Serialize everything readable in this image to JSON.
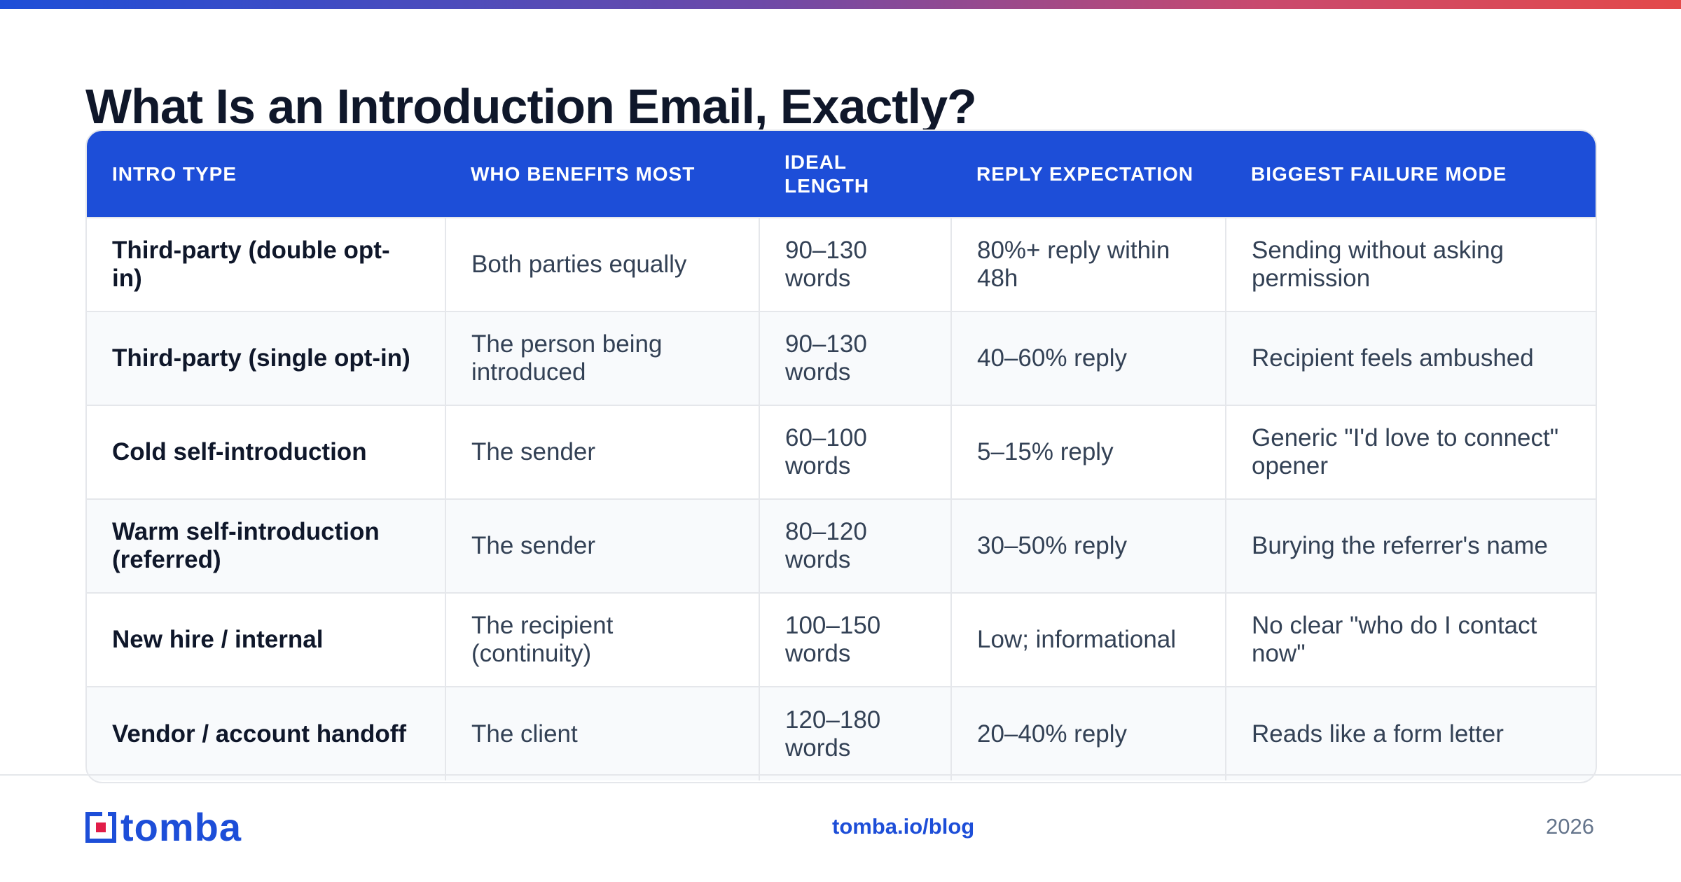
{
  "title": "What Is an Introduction Email, Exactly?",
  "table": {
    "headers": [
      "INTRO TYPE",
      "WHO BENEFITS MOST",
      "IDEAL LENGTH",
      "REPLY EXPECTATION",
      "BIGGEST FAILURE MODE"
    ],
    "rows": [
      [
        "Third-party (double opt-in)",
        "Both parties equally",
        "90–130 words",
        "80%+ reply within 48h",
        "Sending without asking permission"
      ],
      [
        "Third-party (single opt-in)",
        "The person being introduced",
        "90–130 words",
        "40–60% reply",
        "Recipient feels ambushed"
      ],
      [
        "Cold self-introduction",
        "The sender",
        "60–100 words",
        "5–15% reply",
        "Generic \"I'd love to connect\" opener"
      ],
      [
        "Warm self-introduction (referred)",
        "The sender",
        "80–120 words",
        "30–50% reply",
        "Burying the referrer's name"
      ],
      [
        "New hire / internal",
        "The recipient (continuity)",
        "100–150 words",
        "Low; informational",
        "No clear \"who do I contact now\""
      ],
      [
        "Vendor / account handoff",
        "The client",
        "120–180 words",
        "20–40% reply",
        "Reads like a form letter"
      ]
    ]
  },
  "footer": {
    "logo_text": "tomba",
    "link": "tomba.io/blog",
    "year": "2026"
  },
  "colors": {
    "accent": "#1d4ed8",
    "logo_red": "#e11d48",
    "title": "#0f172a",
    "body_text": "#334155"
  },
  "icons": {
    "logo": "tomba-logo-icon"
  }
}
